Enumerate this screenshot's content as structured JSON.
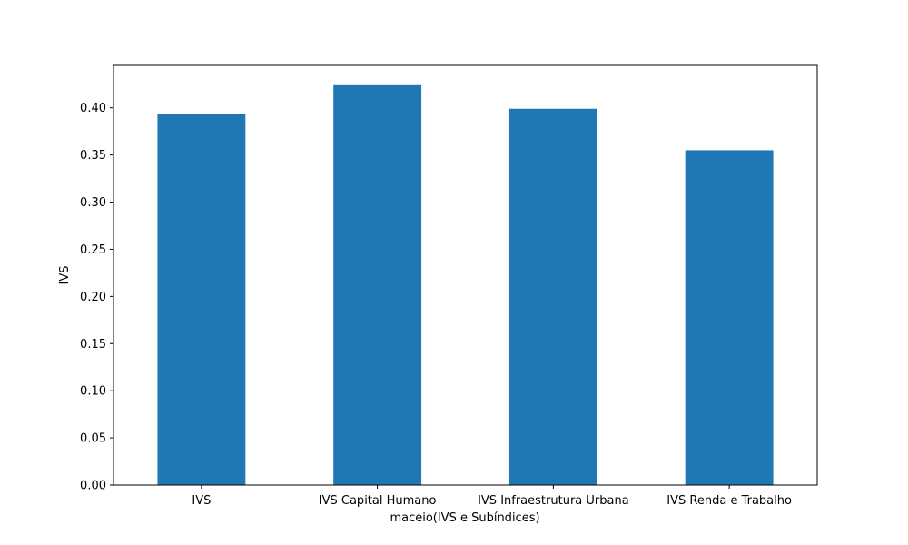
{
  "chart_data": {
    "type": "bar",
    "categories": [
      "IVS",
      "IVS Capital Humano",
      "IVS Infraestrutura Urbana",
      "IVS Renda e Trabalho"
    ],
    "values": [
      0.393,
      0.424,
      0.399,
      0.355
    ],
    "title": "",
    "xlabel": "maceio(IVS e Subíndices)",
    "ylabel": "IVS",
    "ylim": [
      0,
      0.445
    ],
    "yticks": [
      0.0,
      0.05,
      0.1,
      0.15,
      0.2,
      0.25,
      0.3,
      0.35,
      0.4
    ],
    "ytick_labels": [
      "0.00",
      "0.05",
      "0.10",
      "0.15",
      "0.20",
      "0.25",
      "0.30",
      "0.35",
      "0.40"
    ],
    "grid": false,
    "bar_color": "#1f77b4"
  }
}
